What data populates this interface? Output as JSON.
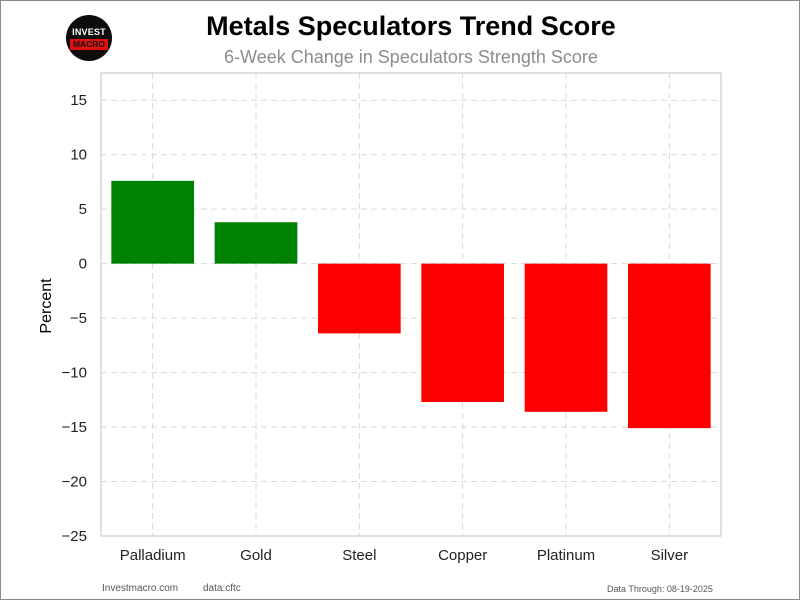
{
  "header": {
    "title": "Metals Speculators Trend Score",
    "subtitle": "6-Week Change in Speculators Strength Score"
  },
  "logo": {
    "line1": "INVEST",
    "line2": "MACRO"
  },
  "footer": {
    "site": "Investmacro.com",
    "source": "data:cftc",
    "data_through": "Data Through: 08-19-2025"
  },
  "colors": {
    "positive": "#008000",
    "negative": "#ff0000",
    "grid": "#d9d9d9"
  },
  "chart_data": {
    "type": "bar",
    "categories": [
      "Palladium",
      "Gold",
      "Steel",
      "Copper",
      "Platinum",
      "Silver"
    ],
    "values": [
      7.6,
      3.8,
      -6.4,
      -12.7,
      -13.6,
      -15.1
    ],
    "title": "Metals Speculators Trend Score",
    "subtitle": "6-Week Change in Speculators Strength Score",
    "xlabel": "",
    "ylabel": "Percent",
    "ylim": [
      -25,
      17.5
    ],
    "yticks": [
      15,
      10,
      5,
      0,
      -5,
      -10,
      -15,
      -20,
      -25
    ],
    "ytick_labels": [
      "15",
      "10",
      "5",
      "0",
      "−5",
      "−10",
      "−15",
      "−20",
      "−25"
    ],
    "grid": true,
    "legend": "none"
  }
}
